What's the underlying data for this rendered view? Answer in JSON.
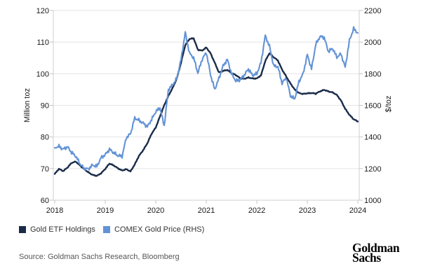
{
  "chart_data": {
    "type": "line",
    "title": "",
    "grid": "horizontal",
    "x_axis": {
      "range": [
        2018,
        2024
      ],
      "ticks": [
        "2018",
        "2019",
        "2020",
        "2021",
        "2022",
        "2023",
        "2024"
      ]
    },
    "left_axis": {
      "label": "Million toz",
      "range": [
        60,
        120
      ],
      "ticks": [
        120,
        110,
        100,
        90,
        80,
        70,
        60
      ]
    },
    "right_axis": {
      "label": "$/toz",
      "range": [
        1000,
        2200
      ],
      "ticks": [
        2200,
        2000,
        1800,
        1600,
        1400,
        1200,
        1000
      ]
    },
    "series": [
      {
        "name": "Gold ETF Holdings",
        "axis": "left",
        "color": "#1a2b49",
        "x_start": 2018,
        "x_step_months": 1,
        "values": [
          68.3,
          69.9,
          69.2,
          70.3,
          71.8,
          72.2,
          71.0,
          69.8,
          68.8,
          68.0,
          67.7,
          68.5,
          69.9,
          71.6,
          71.0,
          70.1,
          69.4,
          69.8,
          69.1,
          71.3,
          74.0,
          75.8,
          78.0,
          81.0,
          83.0,
          86.5,
          90.0,
          93.0,
          95.5,
          98.5,
          103.5,
          109.0,
          111.0,
          111.2,
          107.6,
          107.3,
          108.3,
          106.5,
          103.5,
          100.4,
          100.9,
          101.2,
          100.2,
          99.6,
          98.6,
          98.4,
          98.8,
          98.5,
          98.5,
          99.5,
          104.0,
          106.5,
          105.2,
          104.2,
          101.3,
          99.1,
          96.9,
          95.0,
          93.9,
          93.6,
          93.8,
          93.9,
          93.7,
          94.4,
          94.9,
          94.4,
          94.1,
          93.3,
          91.5,
          88.9,
          87.0,
          85.6,
          84.9
        ]
      },
      {
        "name": "COMEX Gold Price (RHS)",
        "axis": "right",
        "color": "#6393d6",
        "x_start": 2018,
        "x_step_months": 1,
        "values": [
          1332,
          1341,
          1322,
          1338,
          1302,
          1278,
          1230,
          1200,
          1198,
          1222,
          1214,
          1268,
          1288,
          1322,
          1300,
          1282,
          1278,
          1395,
          1420,
          1520,
          1505,
          1488,
          1465,
          1510,
          1560,
          1585,
          1470,
          1700,
          1730,
          1770,
          1890,
          2060,
          1930,
          1900,
          1805,
          1890,
          1935,
          1795,
          1700,
          1770,
          1850,
          1890,
          1800,
          1755,
          1760,
          1790,
          1830,
          1790,
          1800,
          1870,
          2040,
          1975,
          1850,
          1845,
          1740,
          1775,
          1660,
          1640,
          1750,
          1800,
          1920,
          1830,
          1985,
          2035,
          2030,
          1940,
          1960,
          1905,
          1925,
          1840,
          2010,
          2085,
          2058
        ]
      }
    ],
    "legend_position": "bottom-left"
  },
  "legend": {
    "items": [
      {
        "label": "Gold ETF Holdings",
        "color": "#1a2b49"
      },
      {
        "label": "COMEX Gold Price (RHS)",
        "color": "#6393d6"
      }
    ]
  },
  "footer": {
    "source": "Source: Goldman Sachs Research, Bloomberg"
  },
  "logo": {
    "line1": "Goldman",
    "line2": "Sachs"
  }
}
